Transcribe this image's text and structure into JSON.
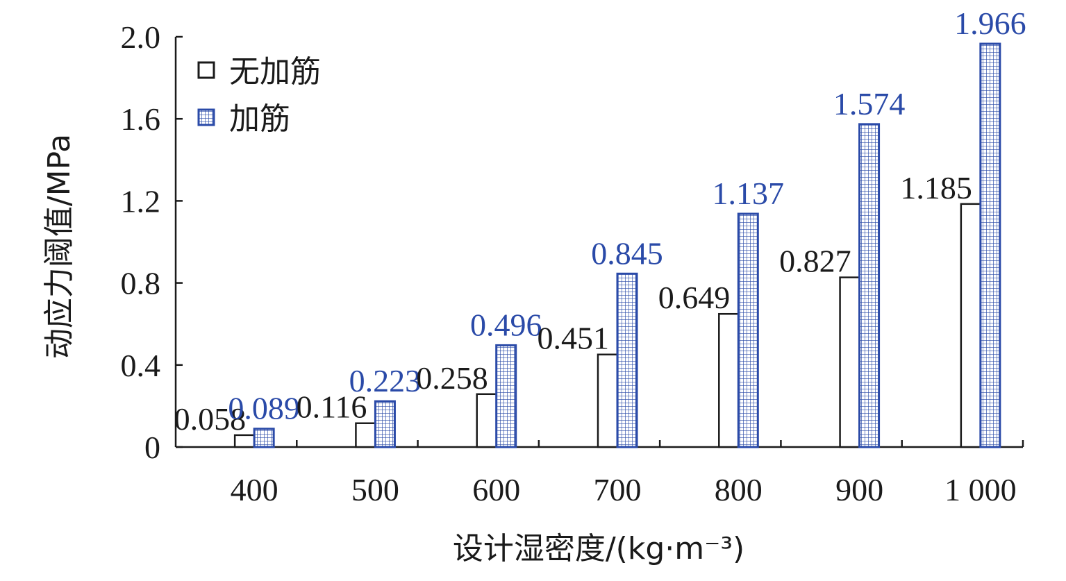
{
  "chart_data": {
    "type": "bar",
    "title": "",
    "xlabel": "设计湿密度/(kg·m⁻³)",
    "ylabel": "动应力阈值/MPa",
    "categories": [
      "400",
      "500",
      "600",
      "700",
      "800",
      "900",
      "1 000"
    ],
    "ylim": [
      0,
      2.0
    ],
    "yticks": [
      "0",
      "0.4",
      "0.8",
      "1.2",
      "1.6",
      "2.0"
    ],
    "ytick_values": [
      0,
      0.4,
      0.8,
      1.2,
      1.6,
      2.0
    ],
    "grid": false,
    "legend_position": "top-left",
    "series": [
      {
        "name": "无加筋",
        "values": [
          0.058,
          0.116,
          0.258,
          0.451,
          0.649,
          0.827,
          1.185
        ],
        "labels": [
          "0.058",
          "0.116",
          "0.258",
          "0.451",
          "0.649",
          "0.827",
          "1.185"
        ],
        "color": "#1a1a1a",
        "fill": "none"
      },
      {
        "name": "加筋",
        "values": [
          0.089,
          0.223,
          0.496,
          0.845,
          1.137,
          1.574,
          1.966
        ],
        "labels": [
          "0.089",
          "0.223",
          "0.496",
          "0.845",
          "1.137",
          "1.574",
          "1.966"
        ],
        "color": "#2a4aa8",
        "fill": "grid-pattern"
      }
    ]
  }
}
